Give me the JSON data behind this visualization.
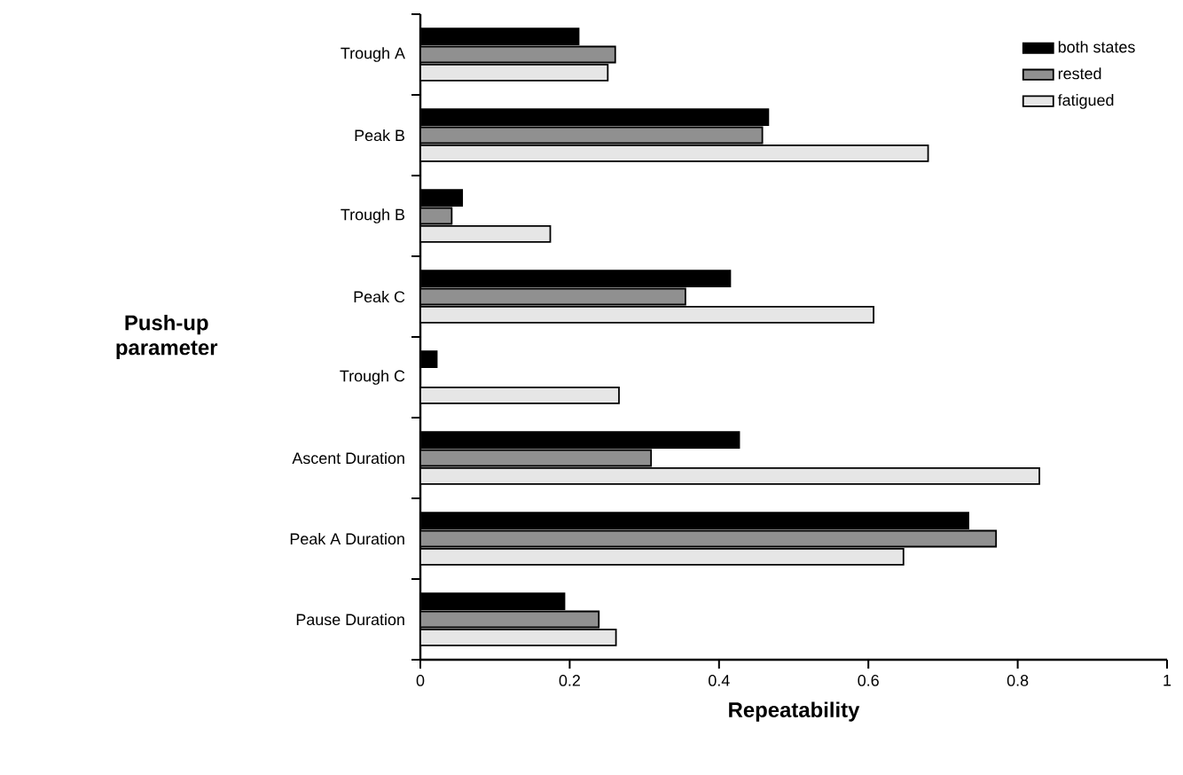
{
  "chart_data": {
    "type": "bar",
    "orientation": "horizontal",
    "xlabel": "Repeatability",
    "ylabel": "Push-up parameter",
    "categories": [
      "Trough A",
      "Peak B",
      "Trough B",
      "Peak C",
      "Trough C",
      "Ascent Duration",
      "Peak A Duration",
      "Pause Duration"
    ],
    "series": [
      {
        "name": "both states",
        "color": "#000000",
        "values": [
          0.212,
          0.466,
          0.056,
          0.415,
          0.022,
          0.427,
          0.734,
          0.193
        ]
      },
      {
        "name": "rested",
        "color": "#909090",
        "values": [
          0.261,
          0.458,
          0.042,
          0.355,
          null,
          0.309,
          0.771,
          0.239
        ]
      },
      {
        "name": "fatigued",
        "color": "#e6e6e6",
        "values": [
          0.251,
          0.68,
          0.174,
          0.607,
          0.266,
          0.829,
          0.647,
          0.262
        ]
      }
    ],
    "xlim": [
      0,
      1
    ],
    "xticks": [
      0,
      0.2,
      0.4,
      0.6,
      0.8,
      1
    ],
    "grid": false,
    "legend": "top right"
  }
}
